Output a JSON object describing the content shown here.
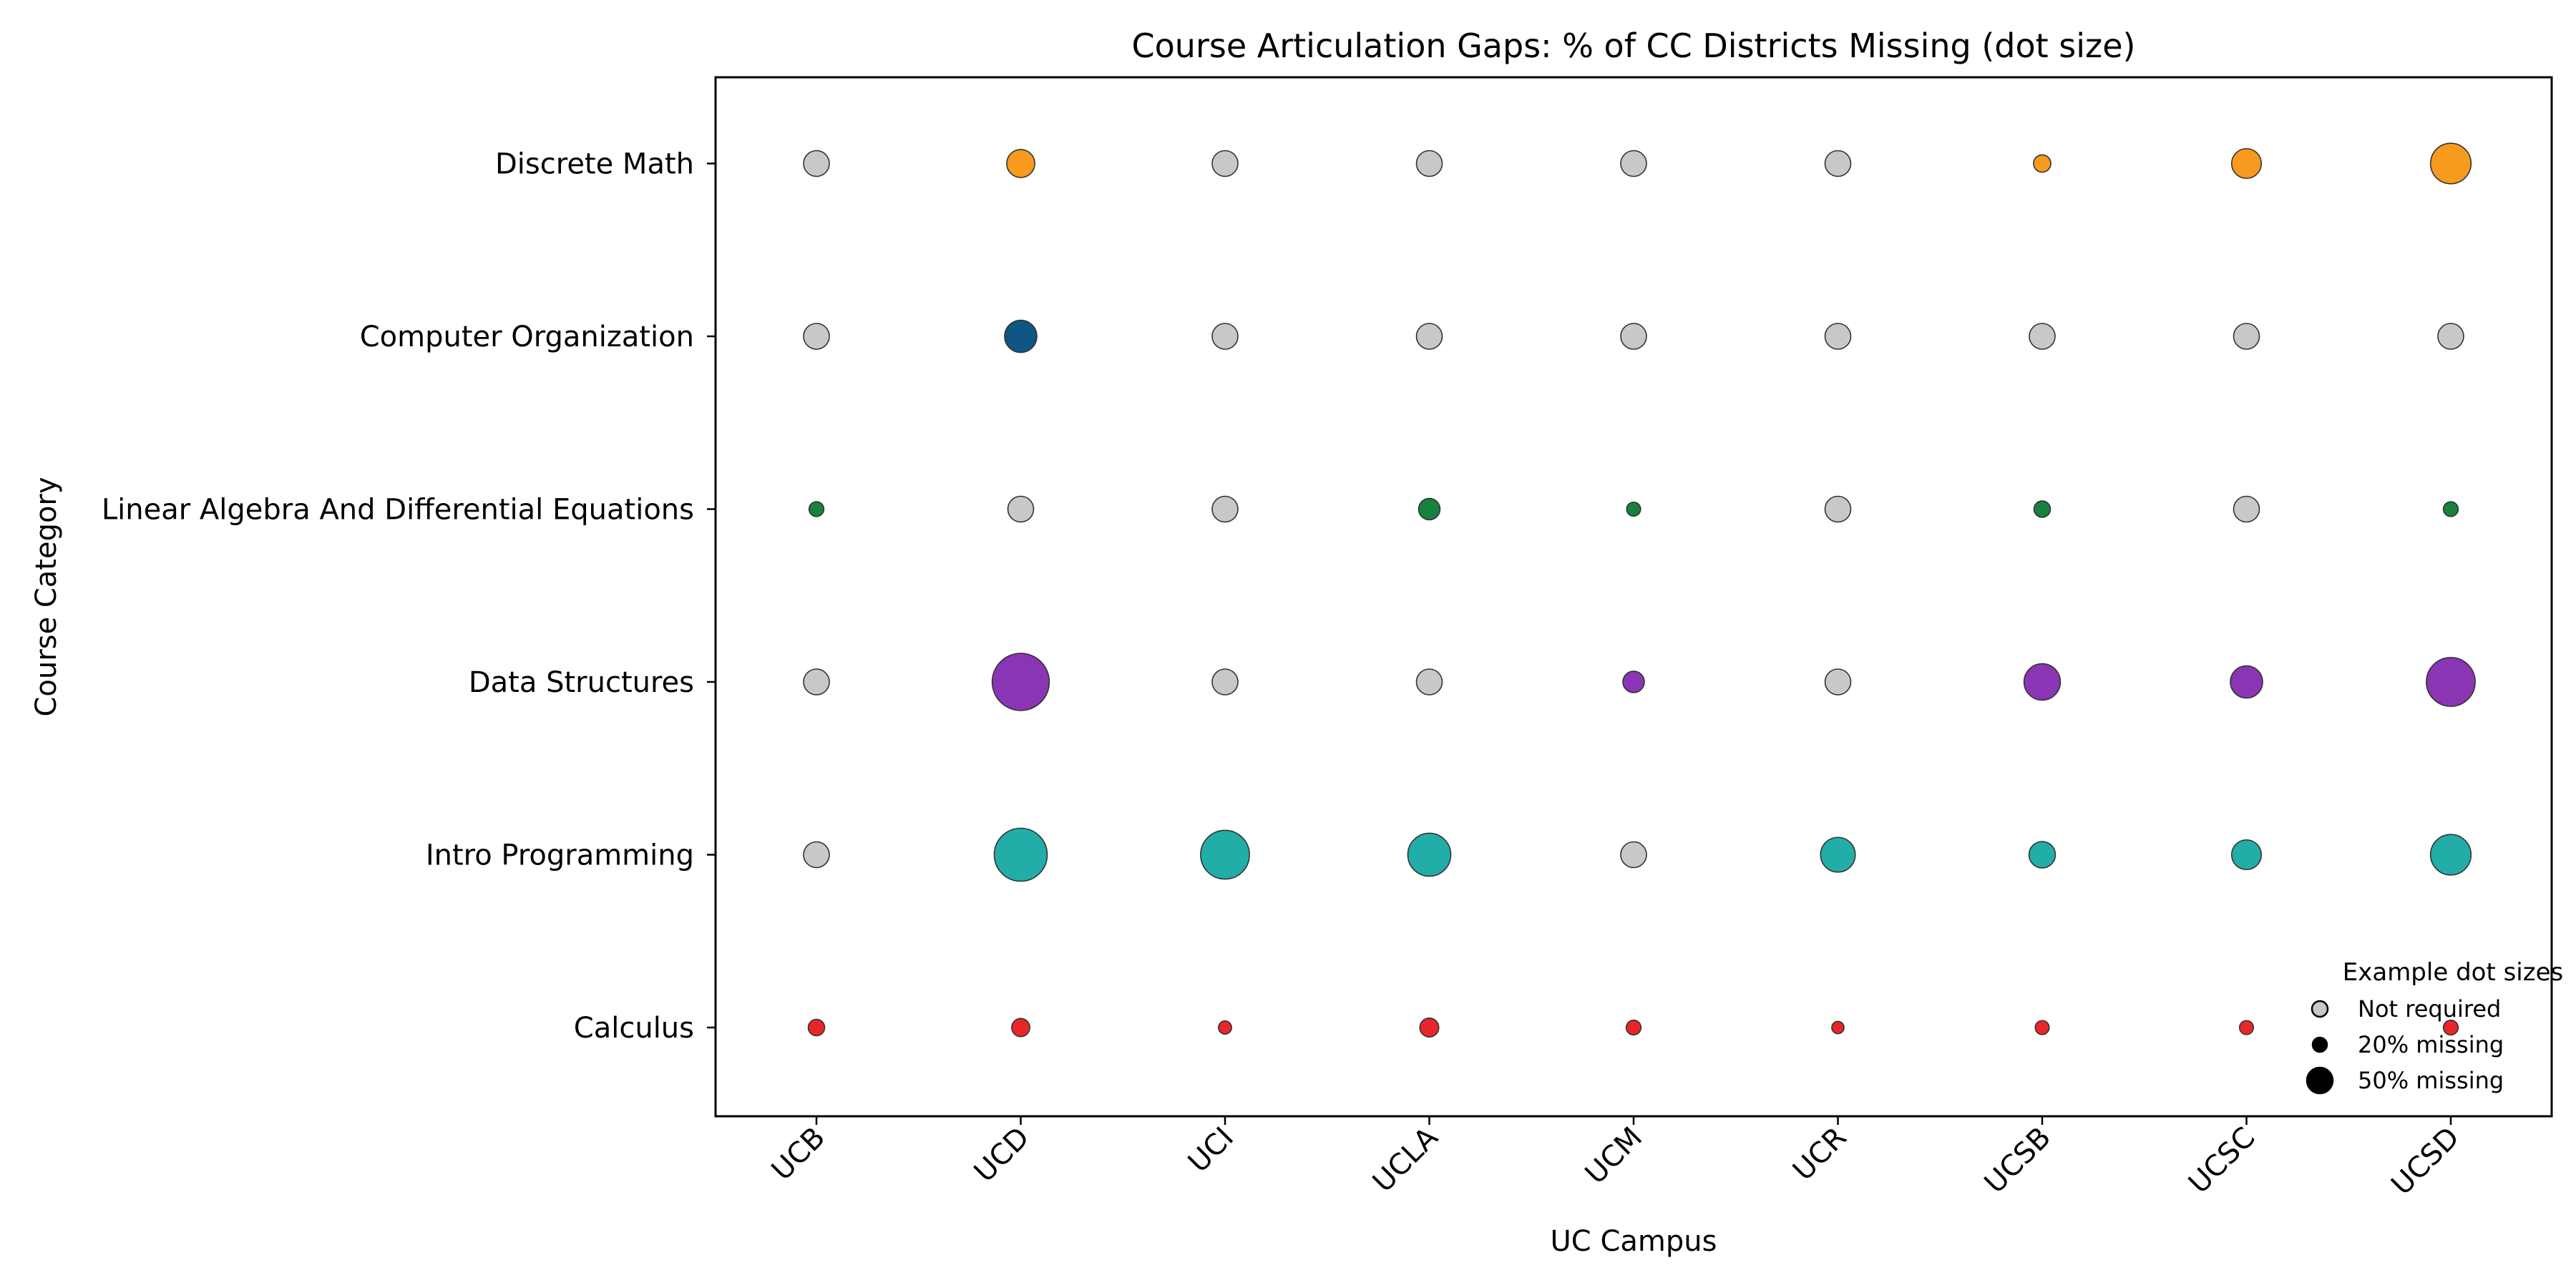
{
  "chart_data": {
    "type": "scatter",
    "title": "Course Articulation Gaps: % of CC Districts Missing (dot size)",
    "xlabel": "UC Campus",
    "ylabel": "Course Category",
    "x_categories": [
      "UCB",
      "UCD",
      "UCI",
      "UCLA",
      "UCM",
      "UCR",
      "UCSB",
      "UCSC",
      "UCSD"
    ],
    "y_categories": [
      "Calculus",
      "Intro Programming",
      "Data Structures",
      "Linear Algebra And Differential Equations",
      "Computer Organization",
      "Discrete Math"
    ],
    "not_required_color": "#c8c8c8",
    "series": [
      {
        "category": "Calculus",
        "color": "#e8262a",
        "values": [
          6,
          8,
          2,
          9,
          4,
          1,
          3,
          3,
          4
        ]
      },
      {
        "category": "Intro Programming",
        "color": "#22ada8",
        "values": [
          null,
          50,
          45,
          38,
          null,
          28,
          18,
          22,
          35
        ]
      },
      {
        "category": "Data Structures",
        "color": "#8a35b4",
        "values": [
          null,
          55,
          null,
          null,
          12,
          null,
          30,
          25,
          45
        ]
      },
      {
        "category": "Linear Algebra And Differential Equations",
        "color": "#17813e",
        "values": [
          4,
          null,
          null,
          12,
          3,
          null,
          6,
          null,
          4
        ]
      },
      {
        "category": "Computer Organization",
        "color": "#0f5584",
        "values": [
          null,
          25,
          null,
          null,
          null,
          null,
          null,
          null,
          null
        ]
      },
      {
        "category": "Discrete Math",
        "color": "#f79a1e",
        "values": [
          null,
          20,
          null,
          null,
          null,
          null,
          7,
          22,
          35
        ]
      }
    ],
    "legend": {
      "title": "Example dot sizes",
      "placement": "lower-right",
      "entries": [
        {
          "label": "Not required",
          "value": null
        },
        {
          "label": "20% missing",
          "value": 20
        },
        {
          "label": "50% missing",
          "value": 50
        }
      ]
    },
    "grid": false
  }
}
